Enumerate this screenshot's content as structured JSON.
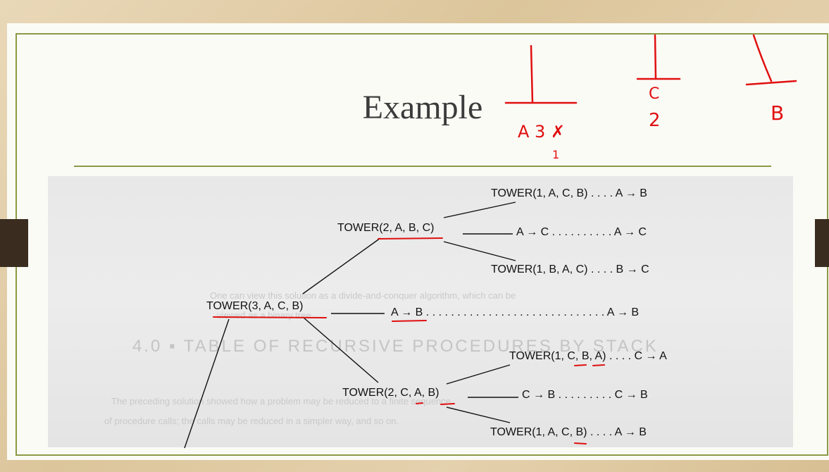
{
  "slide": {
    "title": "Example"
  },
  "scan": {
    "ghost_lines": [
      "One can view this solution as a divide-and-conquer algorithm, which can be",
      "viewed as a binary tree.",
      "4.0 ▪ TABLE OF RECURSIVE PROCEDURES BY STACK",
      "The preceding solution showed how a problem may be reduced to a finite sequence",
      "of procedure calls; the calls may be reduced in a simpler way, and so on."
    ]
  },
  "tree": {
    "n1": "TOWER(1, A, C, B) . . . . A → B",
    "n2": "TOWER(2, A, B, C)",
    "n3": "A → C . . . . . . . . . . A → C",
    "n4": "TOWER(1, B, A, C) . . . . B → C",
    "n5": "TOWER(3, A, C, B)",
    "n6": "A → B . . . . . . . . . . . . . . . . . . . . . . . . . . . . . A → B",
    "n7": "TOWER(1, C, B, A) . . . . C → A",
    "n8": "TOWER(2, C, A, B)",
    "n9": "C → B . . . . . . . . . C → B",
    "n10": "TOWER(1, A, C, B) . . . . A → B"
  },
  "annotations": {
    "peg1_label": "A 3 ✗",
    "peg1_sub": "1",
    "peg2_label_top": "C",
    "peg2_label_bottom": "2",
    "peg3_label": "B"
  },
  "colors": {
    "accent_olive": "#8c9a46",
    "ink_red": "#e01010",
    "tab_brown": "#3a2d20"
  }
}
